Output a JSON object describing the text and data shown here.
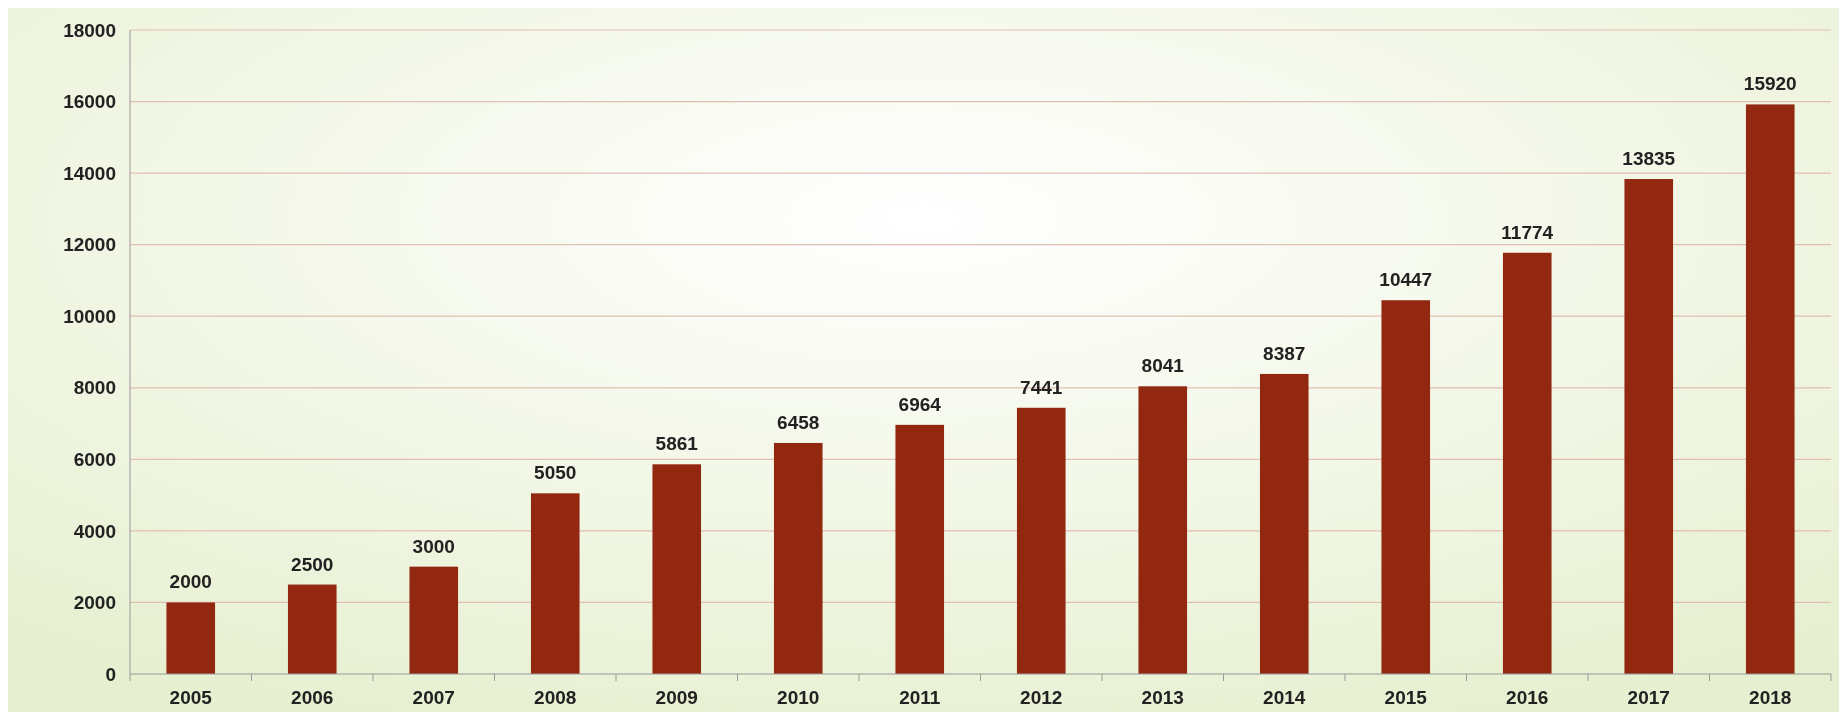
{
  "chart_data": {
    "type": "bar",
    "categories": [
      "2005",
      "2006",
      "2007",
      "2008",
      "2009",
      "2010",
      "2011",
      "2012",
      "2013",
      "2014",
      "2015",
      "2016",
      "2017",
      "2018"
    ],
    "values": [
      2000,
      2500,
      3000,
      5050,
      5861,
      6458,
      6964,
      7441,
      8041,
      8387,
      10447,
      11774,
      13835,
      15920
    ],
    "color": "#922810",
    "ylim": [
      0,
      18000
    ],
    "yticks": [
      0,
      2000,
      4000,
      6000,
      8000,
      10000,
      12000,
      14000,
      16000,
      18000
    ],
    "grid": "y",
    "data_labels": true
  }
}
